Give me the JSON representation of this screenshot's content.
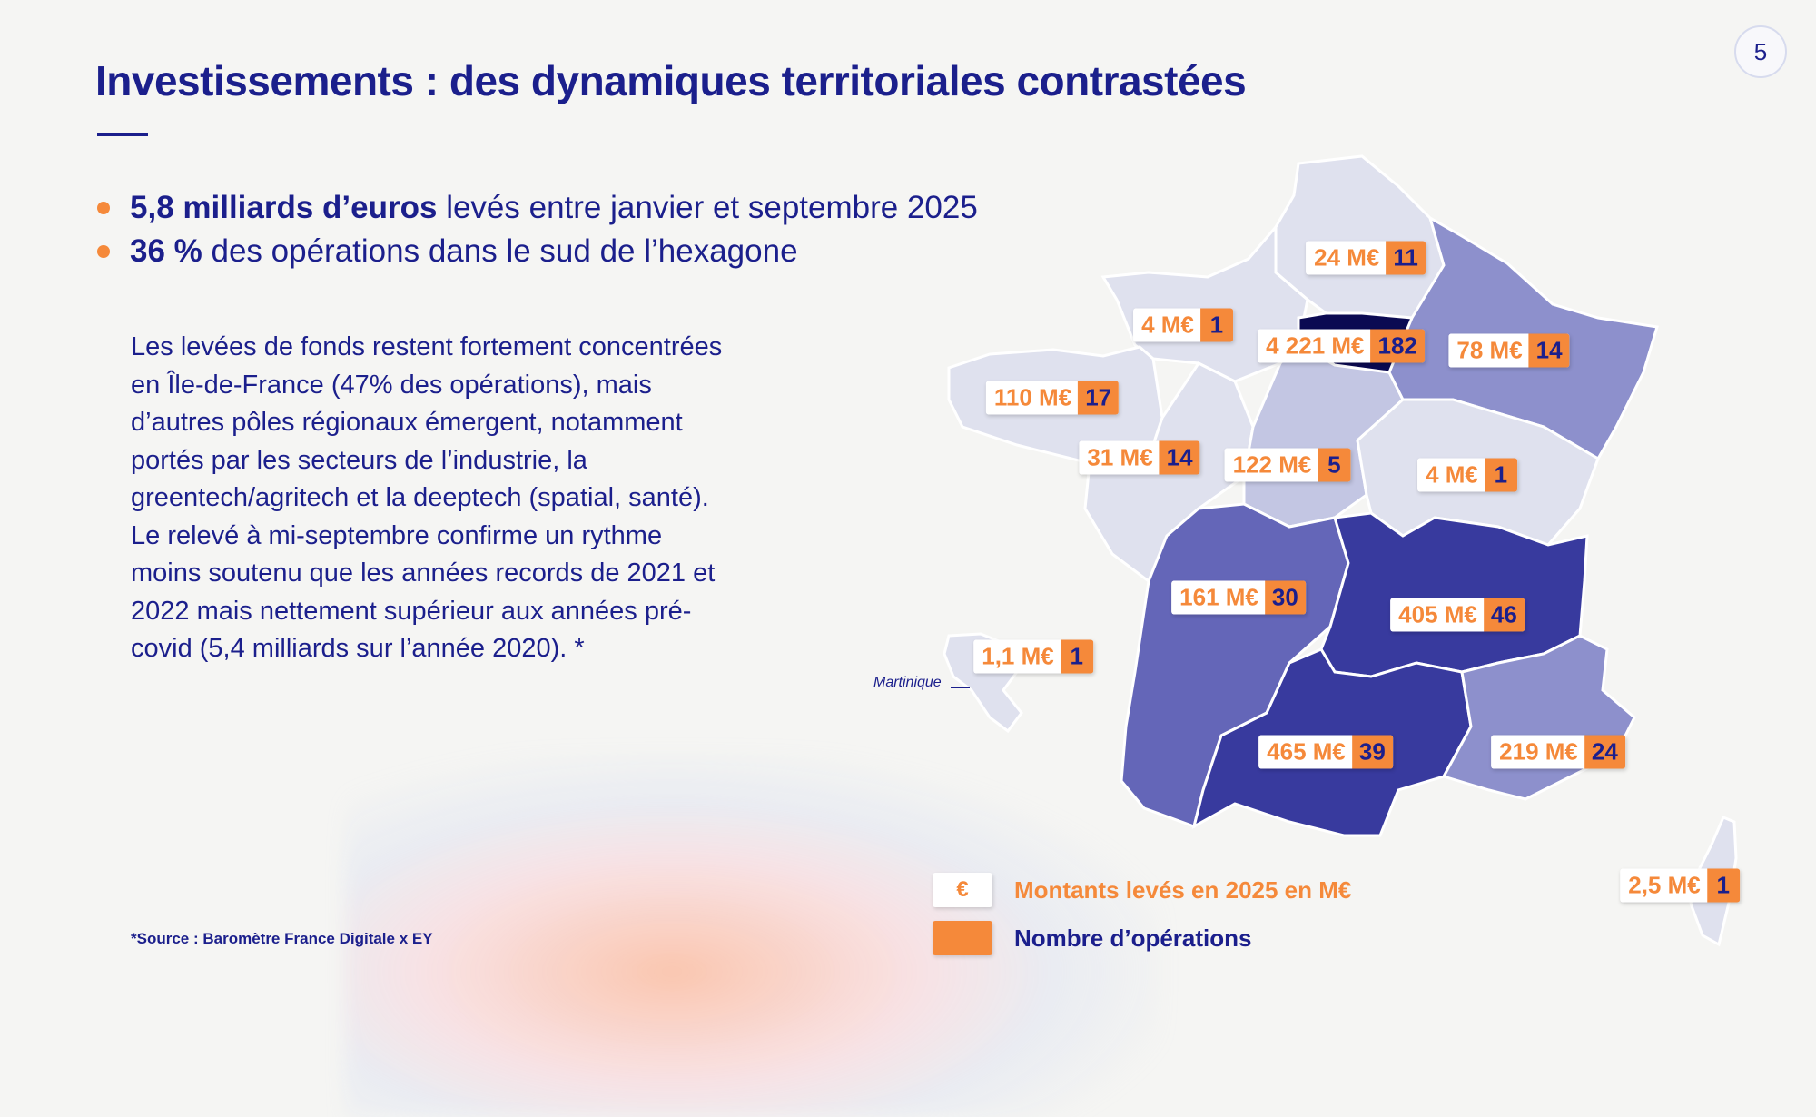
{
  "page": {
    "number": "5"
  },
  "header": {
    "title": "Investissements : des dynamiques territoriales contrastées"
  },
  "bullets": [
    {
      "bold": "5,8 milliards d’euros",
      "rest": " levés entre janvier et septembre 2025"
    },
    {
      "bold": "36 %",
      "rest": " des opérations dans le sud de l’hexagone"
    }
  ],
  "paragraph": "Les levées de fonds restent fortement concentrées en Île-de-France (47% des opérations), mais d’autres pôles régionaux émergent, notamment portés par les secteurs de l’industrie, la greentech/agritech et la deeptech (spatial, santé). Le relevé à mi-septembre confirme un rythme moins soutenu que les années records de 2021 et 2022 mais nettement supérieur aux années pré-covid (5,4 milliards sur l’année 2020). *",
  "source": "*Source : Baromètre France Digitale x EY",
  "map": {
    "martinique_label": "Martinique",
    "colors": {
      "light": "#dfe1ee",
      "mid": "#c3c6e3",
      "medium": "#8d90cc",
      "strong": "#6466b8",
      "dark": "#383a9e",
      "darkest": "#0b0a52",
      "accent": "#f5893a"
    },
    "regions": [
      {
        "name": "Hauts-de-France",
        "amount": "24 M€",
        "operations": "11"
      },
      {
        "name": "Normandie",
        "amount": "4 M€",
        "operations": "1"
      },
      {
        "name": "Île-de-France",
        "amount": "4 221 M€",
        "operations": "182"
      },
      {
        "name": "Grand Est",
        "amount": "78 M€",
        "operations": "14"
      },
      {
        "name": "Bretagne",
        "amount": "110 M€",
        "operations": "17"
      },
      {
        "name": "Pays de la Loire",
        "amount": "31 M€",
        "operations": "14"
      },
      {
        "name": "Centre-Val de Loire",
        "amount": "122 M€",
        "operations": "5"
      },
      {
        "name": "Bourgogne-Franche-Comté",
        "amount": "4 M€",
        "operations": "1"
      },
      {
        "name": "Nouvelle-Aquitaine",
        "amount": "161 M€",
        "operations": "30"
      },
      {
        "name": "Auvergne-Rhône-Alpes",
        "amount": "405 M€",
        "operations": "46"
      },
      {
        "name": "Martinique",
        "amount": "1,1 M€",
        "operations": "1"
      },
      {
        "name": "Occitanie",
        "amount": "465 M€",
        "operations": "39"
      },
      {
        "name": "Provence-Alpes-Côte d’Azur",
        "amount": "219 M€",
        "operations": "24"
      },
      {
        "name": "Corse",
        "amount": "2,5 M€",
        "operations": "1"
      }
    ]
  },
  "legend": {
    "euro_symbol": "€",
    "amount_label": "Montants levés en 2025 en M€",
    "operations_label": "Nombre d’opérations"
  }
}
